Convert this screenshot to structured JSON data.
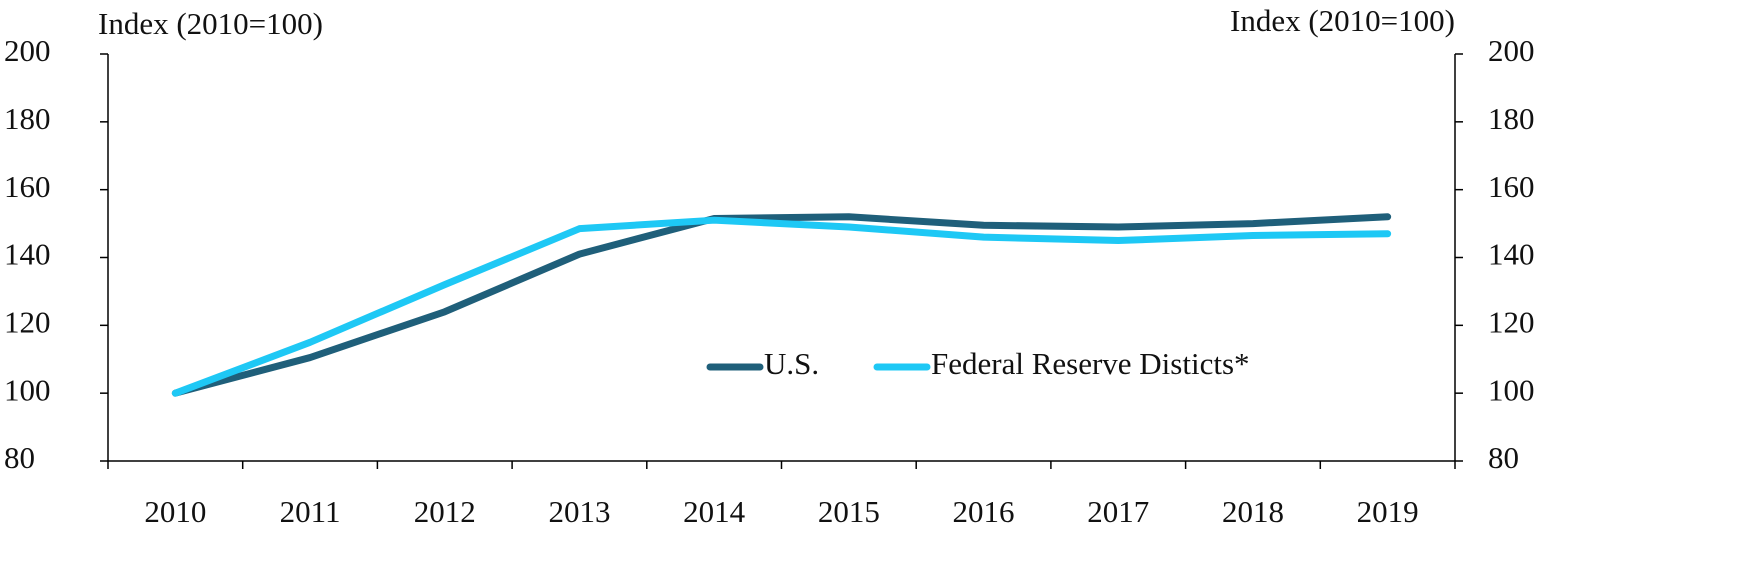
{
  "chart_data": {
    "type": "line",
    "y_label": "Index (2010=100)",
    "y2_label": "Index (2010=100)",
    "categories": [
      "2010",
      "2011",
      "2012",
      "2013",
      "2014",
      "2015",
      "2016",
      "2017",
      "2018",
      "2019"
    ],
    "series": [
      {
        "name": "U.S.",
        "color": "#1f5f7a",
        "values": [
          100,
          110.5,
          124,
          141,
          151.5,
          152,
          149.5,
          149,
          150,
          152
        ]
      },
      {
        "name": "Federal Reserve Disticts*",
        "color": "#1ec8f5",
        "values": [
          100,
          115,
          132,
          148.5,
          151,
          149,
          146,
          145,
          146.5,
          147
        ]
      }
    ],
    "ylim": [
      80,
      200
    ],
    "yticks": [
      80,
      100,
      120,
      140,
      160,
      180,
      200
    ],
    "y2lim": [
      80,
      200
    ],
    "y2ticks": [
      80,
      100,
      120,
      140,
      160,
      180,
      200
    ],
    "grid": false,
    "legend": "bottom-right"
  }
}
